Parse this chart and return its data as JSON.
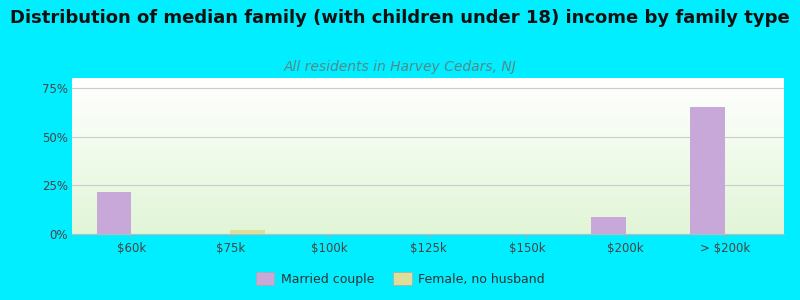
{
  "title": "Distribution of median family (with children under 18) income by family type",
  "subtitle": "All residents in Harvey Cedars, NJ",
  "categories": [
    "$60k",
    "$75k",
    "$100k",
    "$125k",
    "$150k",
    "$200k",
    "> $200k"
  ],
  "married_couple": [
    21.5,
    0.0,
    0.0,
    0.0,
    0.0,
    8.5,
    65.0
  ],
  "female_no_husband": [
    0.0,
    2.0,
    0.0,
    0.0,
    0.0,
    0.0,
    0.0
  ],
  "married_color": "#c8a8d8",
  "female_color": "#dede9a",
  "background_color": "#00eeff",
  "title_fontsize": 13,
  "subtitle_fontsize": 10,
  "subtitle_color": "#558888",
  "title_color": "#111111",
  "ylim": [
    0,
    80
  ],
  "yticks": [
    0,
    25,
    50,
    75
  ],
  "ytick_labels": [
    "0%",
    "25%",
    "50%",
    "75%"
  ],
  "bar_width": 0.35,
  "legend_labels": [
    "Married couple",
    "Female, no husband"
  ]
}
